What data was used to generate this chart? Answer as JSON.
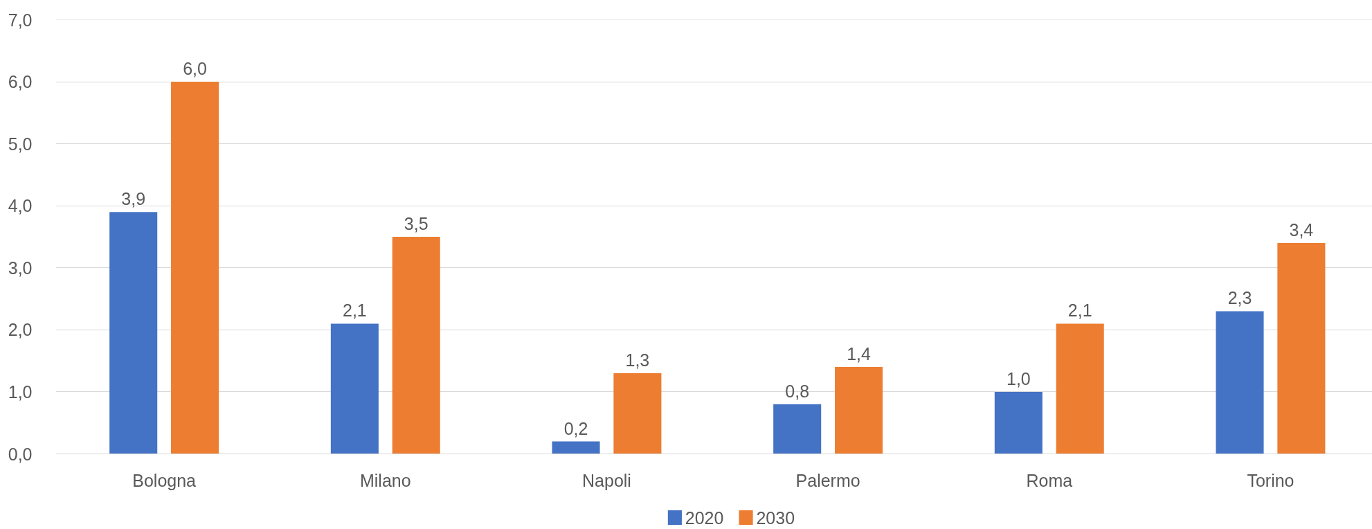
{
  "chart_data": {
    "type": "bar",
    "categories": [
      "Bologna",
      "Milano",
      "Napoli",
      "Palermo",
      "Roma",
      "Torino"
    ],
    "series": [
      {
        "name": "2020",
        "color": "#4472c4",
        "values": [
          3.9,
          2.1,
          0.2,
          0.8,
          1.0,
          2.3
        ],
        "value_labels": [
          "3,9",
          "2,1",
          "0,2",
          "0,8",
          "1,0",
          "2,3"
        ]
      },
      {
        "name": "2030",
        "color": "#ed7d31",
        "values": [
          6.0,
          3.5,
          1.3,
          1.4,
          2.1,
          3.4
        ],
        "value_labels": [
          "6,0",
          "3,5",
          "1,3",
          "1,4",
          "2,1",
          "3,4"
        ]
      }
    ],
    "ylim": [
      0,
      7
    ],
    "yticks": [
      {
        "value": 0,
        "label": "0,0"
      },
      {
        "value": 1,
        "label": "1,0"
      },
      {
        "value": 2,
        "label": "2,0"
      },
      {
        "value": 3,
        "label": "3,0"
      },
      {
        "value": 4,
        "label": "4,0"
      },
      {
        "value": 5,
        "label": "5,0"
      },
      {
        "value": 6,
        "label": "6,0"
      },
      {
        "value": 7,
        "label": "7,0"
      }
    ],
    "grid": "y",
    "legend": "bottom"
  }
}
